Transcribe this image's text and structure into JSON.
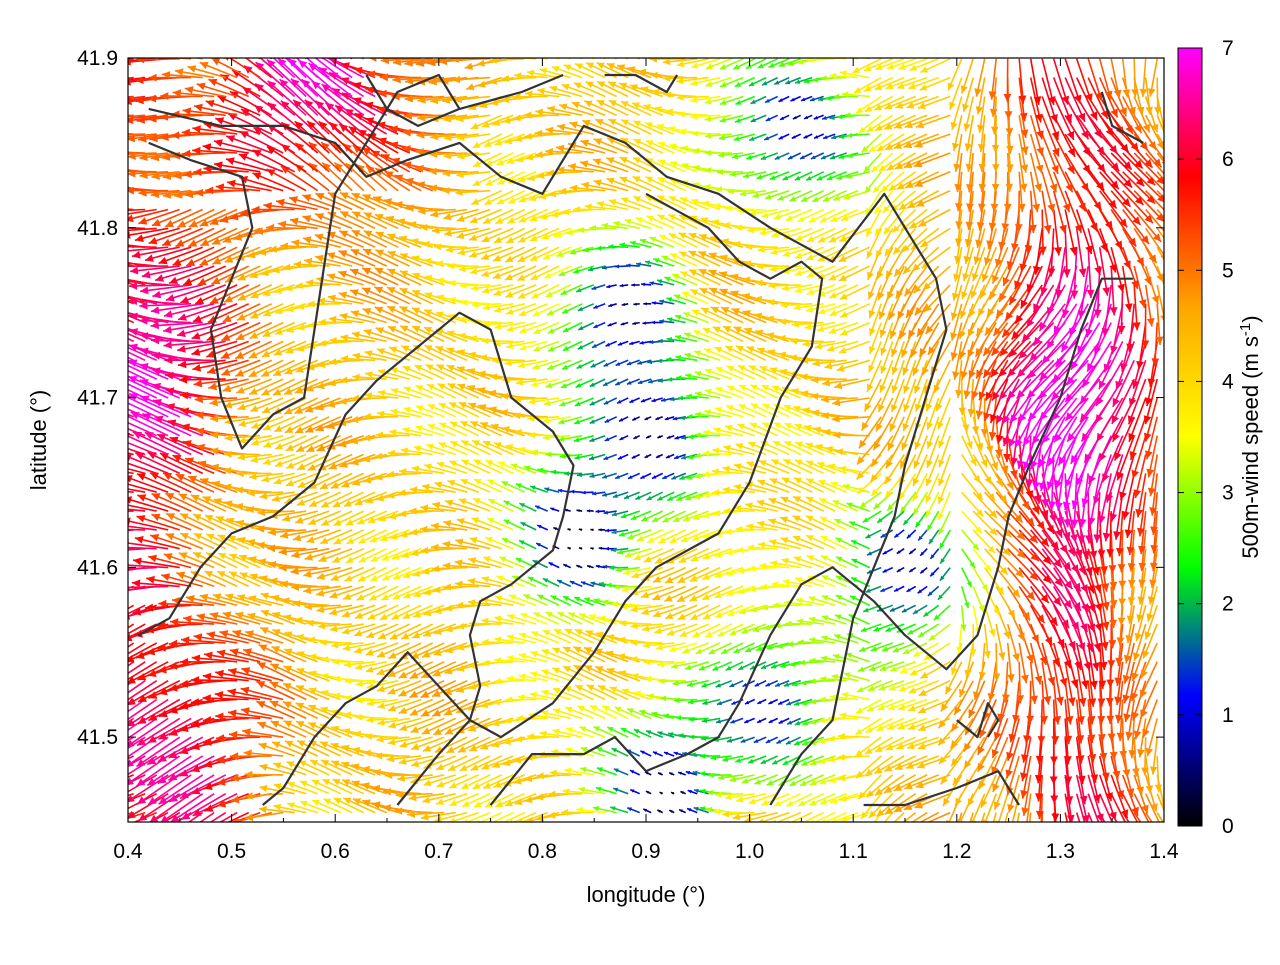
{
  "chart_data": {
    "type": "vector-field",
    "title": "",
    "xlabel": "longitude (°)",
    "ylabel": "latitude (°)",
    "xlim": [
      0.4,
      1.4
    ],
    "ylim": [
      41.45,
      41.9
    ],
    "xticks": [
      0.4,
      0.5,
      0.6,
      0.7,
      0.8,
      0.9,
      1.0,
      1.1,
      1.2,
      1.3,
      1.4
    ],
    "xtick_labels": [
      "0.4",
      "0.5",
      "0.6",
      "0.7",
      "0.8",
      "0.9",
      "1.0",
      "1.1",
      "1.2",
      "1.3",
      "1.4"
    ],
    "yticks": [
      41.5,
      41.6,
      41.7,
      41.8,
      41.9
    ],
    "ytick_labels": [
      "41.5",
      "41.6",
      "41.7",
      "41.8",
      "41.9"
    ],
    "grid": false,
    "colorbar": {
      "label_main": "500m-wind speed (m s",
      "label_sup": "-1",
      "label_close": ")",
      "range": [
        0,
        7
      ],
      "ticks": [
        0,
        1,
        2,
        3,
        4,
        5,
        6,
        7
      ],
      "tick_labels": [
        "0",
        "1",
        "2",
        "3",
        "4",
        "5",
        "6",
        "7"
      ],
      "colors": [
        "#000000",
        "#0000ff",
        "#00ff00",
        "#ffff00",
        "#ffa500",
        "#ff0000",
        "#ff00ff"
      ]
    },
    "vector_field": {
      "units": "m s-1",
      "description_grid_step_lon": 0.0111,
      "description_grid_step_lat": 0.0111,
      "calm_centers": [
        {
          "lon": 0.84,
          "lat": 41.62,
          "speed": 0.3
        },
        {
          "lon": 0.92,
          "lat": 41.68,
          "speed": 0.5
        },
        {
          "lon": 1.05,
          "lat": 41.86,
          "speed": 0.6
        },
        {
          "lon": 1.15,
          "lat": 41.6,
          "speed": 0.9
        },
        {
          "lon": 0.92,
          "lat": 41.47,
          "speed": 0.5
        },
        {
          "lon": 1.03,
          "lat": 41.52,
          "speed": 0.8
        },
        {
          "lon": 0.88,
          "lat": 41.75,
          "speed": 0.6
        }
      ],
      "strong_regions": [
        {
          "lon": 0.43,
          "lat": 41.72,
          "speed": 7.0
        },
        {
          "lon": 0.6,
          "lat": 41.88,
          "speed": 7.0
        },
        {
          "lon": 1.33,
          "lat": 41.7,
          "speed": 7.0
        },
        {
          "lon": 0.45,
          "lat": 41.5,
          "speed": 6.8
        }
      ]
    },
    "contour_lines_lon_lat": [
      [
        [
          0.42,
          41.87
        ],
        [
          0.49,
          41.86
        ],
        [
          0.55,
          41.86
        ],
        [
          0.6,
          41.85
        ],
        [
          0.63,
          41.83
        ],
        [
          0.67,
          41.84
        ],
        [
          0.72,
          41.85
        ],
        [
          0.76,
          41.83
        ],
        [
          0.8,
          41.82
        ],
        [
          0.84,
          41.86
        ],
        [
          0.88,
          41.85
        ],
        [
          0.92,
          41.83
        ],
        [
          0.97,
          41.82
        ],
        [
          1.02,
          41.8
        ],
        [
          1.08,
          41.78
        ],
        [
          1.13,
          41.82
        ],
        [
          1.15,
          41.8
        ],
        [
          1.18,
          41.77
        ],
        [
          1.19,
          41.74
        ],
        [
          1.17,
          41.7
        ],
        [
          1.15,
          41.66
        ],
        [
          1.14,
          41.63
        ],
        [
          1.1,
          41.57
        ],
        [
          1.08,
          41.51
        ],
        [
          1.05,
          41.49
        ],
        [
          1.02,
          41.46
        ]
      ],
      [
        [
          0.42,
          41.85
        ],
        [
          0.46,
          41.84
        ],
        [
          0.51,
          41.83
        ],
        [
          0.52,
          41.8
        ],
        [
          0.5,
          41.77
        ],
        [
          0.48,
          41.74
        ],
        [
          0.49,
          41.7
        ],
        [
          0.51,
          41.67
        ],
        [
          0.54,
          41.69
        ],
        [
          0.57,
          41.7
        ],
        [
          0.58,
          41.74
        ],
        [
          0.59,
          41.78
        ],
        [
          0.6,
          41.82
        ],
        [
          0.62,
          41.84
        ],
        [
          0.66,
          41.88
        ],
        [
          0.7,
          41.89
        ],
        [
          0.72,
          41.87
        ]
      ],
      [
        [
          0.63,
          41.89
        ],
        [
          0.65,
          41.87
        ],
        [
          0.68,
          41.86
        ],
        [
          0.72,
          41.87
        ],
        [
          0.78,
          41.88
        ],
        [
          0.82,
          41.89
        ]
      ],
      [
        [
          0.86,
          41.89
        ],
        [
          0.89,
          41.89
        ],
        [
          0.92,
          41.88
        ],
        [
          0.93,
          41.89
        ]
      ],
      [
        [
          0.41,
          41.56
        ],
        [
          0.44,
          41.57
        ],
        [
          0.47,
          41.6
        ],
        [
          0.5,
          41.62
        ],
        [
          0.54,
          41.63
        ],
        [
          0.58,
          41.65
        ],
        [
          0.61,
          41.69
        ],
        [
          0.64,
          41.71
        ],
        [
          0.68,
          41.73
        ],
        [
          0.72,
          41.75
        ],
        [
          0.75,
          41.74
        ],
        [
          0.77,
          41.7
        ],
        [
          0.81,
          41.68
        ],
        [
          0.83,
          41.66
        ],
        [
          0.82,
          41.63
        ],
        [
          0.81,
          41.61
        ],
        [
          0.77,
          41.59
        ],
        [
          0.74,
          41.58
        ],
        [
          0.73,
          41.56
        ],
        [
          0.74,
          41.53
        ],
        [
          0.73,
          41.51
        ],
        [
          0.7,
          41.53
        ],
        [
          0.67,
          41.55
        ],
        [
          0.64,
          41.53
        ],
        [
          0.61,
          41.52
        ],
        [
          0.58,
          41.5
        ],
        [
          0.55,
          41.47
        ],
        [
          0.53,
          41.46
        ]
      ],
      [
        [
          0.66,
          41.46
        ],
        [
          0.7,
          41.49
        ],
        [
          0.73,
          41.51
        ],
        [
          0.76,
          41.5
        ],
        [
          0.81,
          41.52
        ],
        [
          0.85,
          41.55
        ],
        [
          0.88,
          41.58
        ],
        [
          0.91,
          41.6
        ],
        [
          0.94,
          41.61
        ],
        [
          0.97,
          41.62
        ],
        [
          1.0,
          41.65
        ],
        [
          1.03,
          41.7
        ],
        [
          1.06,
          41.73
        ],
        [
          1.07,
          41.77
        ],
        [
          1.05,
          41.78
        ],
        [
          1.02,
          41.77
        ],
        [
          0.99,
          41.78
        ],
        [
          0.96,
          41.8
        ],
        [
          0.93,
          41.81
        ],
        [
          0.9,
          41.82
        ]
      ],
      [
        [
          0.75,
          41.46
        ],
        [
          0.79,
          41.49
        ],
        [
          0.84,
          41.49
        ],
        [
          0.87,
          41.5
        ],
        [
          0.9,
          41.48
        ],
        [
          0.94,
          41.49
        ],
        [
          0.97,
          41.5
        ],
        [
          0.99,
          41.52
        ],
        [
          1.02,
          41.56
        ],
        [
          1.05,
          41.59
        ],
        [
          1.08,
          41.6
        ],
        [
          1.12,
          41.58
        ],
        [
          1.15,
          41.56
        ],
        [
          1.19,
          41.54
        ],
        [
          1.22,
          41.56
        ],
        [
          1.24,
          41.6
        ],
        [
          1.25,
          41.63
        ],
        [
          1.27,
          41.66
        ],
        [
          1.3,
          41.7
        ],
        [
          1.32,
          41.74
        ],
        [
          1.34,
          41.77
        ],
        [
          1.37,
          41.77
        ]
      ],
      [
        [
          1.11,
          41.46
        ],
        [
          1.15,
          41.46
        ],
        [
          1.2,
          41.47
        ],
        [
          1.24,
          41.48
        ],
        [
          1.26,
          41.46
        ]
      ],
      [
        [
          1.2,
          41.51
        ],
        [
          1.22,
          41.5
        ],
        [
          1.23,
          41.52
        ],
        [
          1.24,
          41.51
        ],
        [
          1.23,
          41.5
        ]
      ],
      [
        [
          1.34,
          41.88
        ],
        [
          1.35,
          41.86
        ],
        [
          1.38,
          41.85
        ]
      ]
    ]
  }
}
